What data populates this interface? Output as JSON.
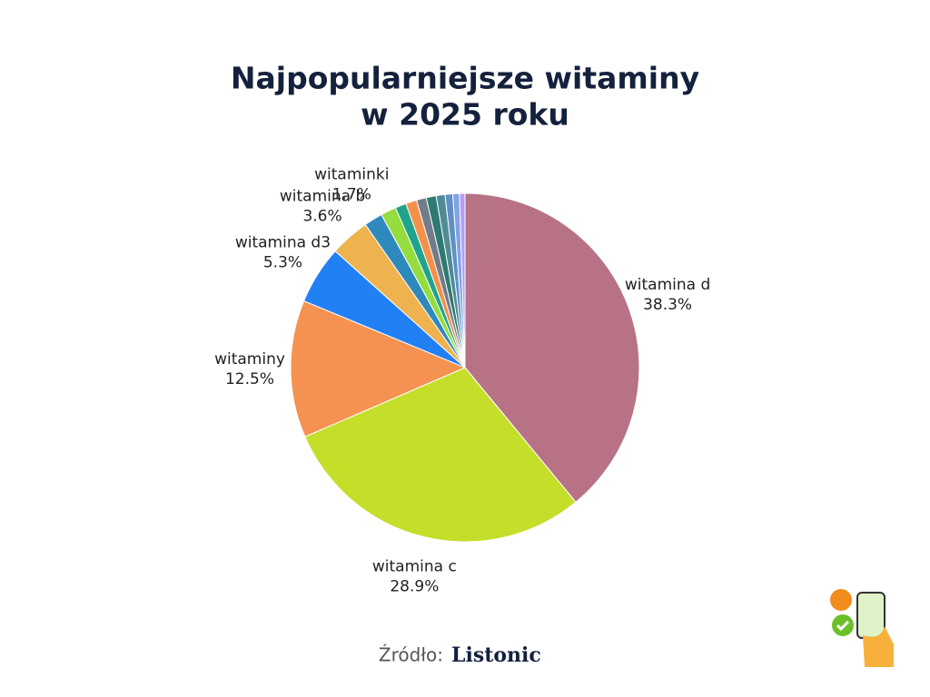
{
  "chart_data": {
    "type": "pie",
    "title": [
      "Najpopularniejsze witaminy",
      "w 2025 roku"
    ],
    "categories": [
      "witamina d",
      "witamina c",
      "witaminy",
      "witamina d3",
      "witamina b",
      "witaminki",
      null,
      null,
      null,
      null,
      null,
      null,
      null,
      null,
      null
    ],
    "values": [
      38.3,
      28.9,
      12.5,
      5.3,
      3.6,
      1.7,
      1.4,
      1.0,
      1.0,
      0.9,
      0.9,
      0.8,
      0.7,
      0.6,
      0.5
    ],
    "value_labels": [
      "38.3%",
      "28.9%",
      "12.5%",
      "5.3%",
      "3.6%",
      "1.7%",
      null,
      null,
      null,
      null,
      null,
      null,
      null,
      null,
      null
    ],
    "colors": [
      "#b87285",
      "#c5de2a",
      "#f59251",
      "#2280f5",
      "#eeb24f",
      "#2e89bd",
      "#95dc3e",
      "#1fa38c",
      "#f5904a",
      "#737c8a",
      "#2d7a72",
      "#4f8b96",
      "#5f8fc4",
      "#7fa3e6",
      "#b79cf5"
    ],
    "source_label": "Źródło:",
    "source_name": "Listonic"
  }
}
